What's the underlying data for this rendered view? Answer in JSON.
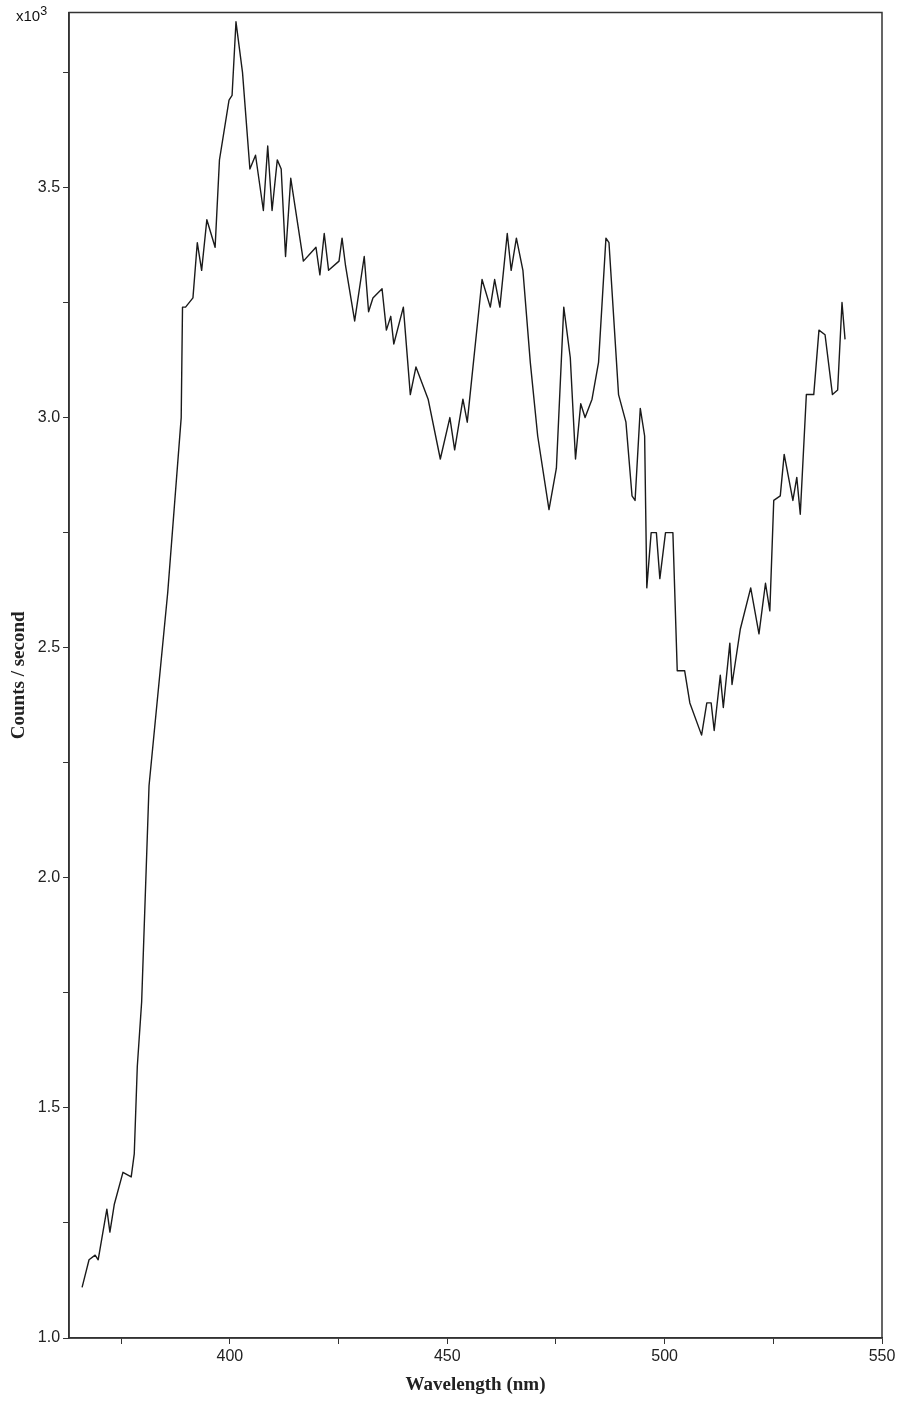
{
  "chart_data": {
    "type": "line",
    "xlabel": "Wavelength (nm)",
    "ylabel": "Counts / second",
    "annotations": [
      "x10$^{3}$"
    ],
    "xlim": [
      363,
      550
    ],
    "ylim": [
      1.0,
      3.88
    ],
    "xticks": [
      {
        "value": 375,
        "label": null
      },
      400,
      {
        "value": 425,
        "label": null
      },
      450,
      {
        "value": 475,
        "label": null
      },
      500,
      {
        "value": 525,
        "label": null
      },
      550
    ],
    "yticks": [
      {
        "value": 1,
        "label": "1.0"
      },
      {
        "value": 1.25,
        "label": null
      },
      1.5,
      {
        "value": 1.75,
        "label": null
      },
      {
        "value": 2,
        "label": "2.0"
      },
      {
        "value": 2.25,
        "label": null
      },
      2.5,
      {
        "value": 2.75,
        "label": null
      },
      {
        "value": 3,
        "label": "3.0"
      },
      {
        "value": 3.25,
        "label": null
      },
      3.5,
      {
        "value": 3.75,
        "label": null
      }
    ],
    "marker": "none",
    "line_style": "solid",
    "series": [
      {
        "color": "#1a1a1a",
        "x": [
          366.0,
          367.6,
          369.0,
          369.7,
          371.7,
          372.4,
          373.4,
          375.4,
          377.3,
          378.0,
          378.7,
          379.7,
          381.4,
          385.7,
          388.8,
          389.1,
          389.8,
          391.5,
          392.5,
          393.5,
          394.7,
          396.6,
          397.6,
          399.8,
          400.5,
          401.4,
          402.9,
          404.6,
          405.9,
          407.7,
          408.7,
          409.7,
          410.9,
          411.8,
          412.8,
          414.0,
          416.9,
          419.8,
          420.7,
          421.7,
          422.7,
          425.1,
          425.8,
          426.6,
          428.7,
          430.9,
          431.9,
          432.9,
          435.0,
          436.0,
          437.0,
          437.7,
          439.9,
          441.5,
          442.8,
          445.6,
          448.4,
          450.6,
          451.7,
          453.6,
          454.6,
          455.8,
          458.0,
          459.9,
          460.9,
          462.1,
          463.8,
          464.7,
          465.9,
          467.4,
          469.1,
          470.8,
          473.4,
          475.1,
          476.8,
          478.3,
          479.5,
          480.7,
          481.7,
          483.3,
          484.8,
          486.5,
          487.2,
          489.4,
          491.1,
          492.5,
          493.2,
          494.4,
          495.4,
          495.9,
          496.9,
          498.1,
          498.9,
          500.2,
          501.9,
          502.9,
          504.6,
          505.8,
          508.5,
          509.7,
          510.7,
          511.4,
          512.8,
          513.5,
          515.0,
          515.5,
          517.4,
          519.8,
          521.7,
          523.2,
          524.2,
          525.1,
          526.6,
          527.5,
          529.5,
          530.4,
          531.2,
          532.6,
          534.3,
          535.5,
          536.9,
          538.6,
          539.8,
          540.8,
          541.5
        ],
        "values": [
          1.11,
          1.17,
          1.18,
          1.17,
          1.28,
          1.23,
          1.29,
          1.36,
          1.35,
          1.4,
          1.59,
          1.73,
          2.2,
          2.62,
          3.0,
          3.24,
          3.24,
          3.26,
          3.38,
          3.32,
          3.43,
          3.37,
          3.56,
          3.69,
          3.7,
          3.86,
          3.75,
          3.54,
          3.57,
          3.45,
          3.59,
          3.45,
          3.56,
          3.54,
          3.35,
          3.52,
          3.34,
          3.37,
          3.31,
          3.4,
          3.32,
          3.34,
          3.39,
          3.33,
          3.21,
          3.35,
          3.23,
          3.26,
          3.28,
          3.19,
          3.22,
          3.16,
          3.24,
          3.05,
          3.11,
          3.04,
          2.91,
          3.0,
          2.93,
          3.04,
          2.99,
          3.1,
          3.3,
          3.24,
          3.3,
          3.24,
          3.4,
          3.32,
          3.39,
          3.32,
          3.12,
          2.96,
          2.8,
          2.89,
          3.24,
          3.13,
          2.91,
          3.03,
          3.0,
          3.04,
          3.12,
          3.39,
          3.38,
          3.05,
          2.99,
          2.83,
          2.82,
          3.02,
          2.96,
          2.63,
          2.75,
          2.75,
          2.65,
          2.75,
          2.75,
          2.45,
          2.45,
          2.38,
          2.31,
          2.38,
          2.38,
          2.32,
          2.44,
          2.37,
          2.51,
          2.42,
          2.54,
          2.63,
          2.53,
          2.64,
          2.58,
          2.82,
          2.83,
          2.92,
          2.82,
          2.87,
          2.79,
          3.05,
          3.05,
          3.19,
          3.18,
          3.05,
          3.06,
          3.25,
          3.17
        ]
      }
    ]
  }
}
